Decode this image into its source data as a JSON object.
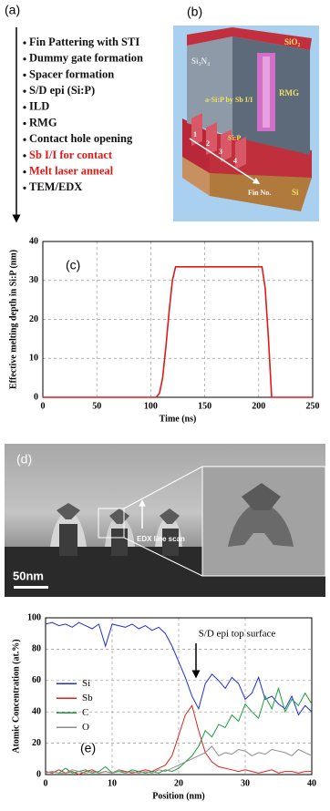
{
  "panels": {
    "a": "(a)",
    "b": "(b)",
    "d": "(d)"
  },
  "process_flow": {
    "steps": [
      {
        "text": "Fin Pattering with STI",
        "color": "#111111"
      },
      {
        "text": "Dummy gate formation",
        "color": "#111111"
      },
      {
        "text": "Spacer formation",
        "color": "#111111"
      },
      {
        "text": "S/D epi (Si:P)",
        "color": "#111111"
      },
      {
        "text": "ILD",
        "color": "#111111"
      },
      {
        "text": "RMG",
        "color": "#111111"
      },
      {
        "text": "Contact hole opening",
        "color": "#111111"
      },
      {
        "text": "Sb I/I for contact",
        "color": "#e01818"
      },
      {
        "text": "Melt laser anneal",
        "color": "#e01818"
      },
      {
        "text": "TEM/EDX",
        "color": "#111111"
      }
    ]
  },
  "diagram": {
    "sio2": "SiO₂",
    "si3n4": "Si₃N₄",
    "asip": "a-Si:P by Sb I/I",
    "rmg": "RMG",
    "sip": "Si:P",
    "fins": [
      "1",
      "2",
      "3",
      "4"
    ],
    "fin_no": "Fin No.",
    "si": "Si"
  },
  "tem": {
    "edx": "EDX line scan",
    "scale": "50nm"
  },
  "chart_data": [
    {
      "type": "line",
      "panel": "(c)",
      "x_label": "Time (ns)",
      "y_label": "Effective melting depth in Si:P (nm)",
      "x": [
        0,
        105,
        108,
        111,
        114,
        117,
        120,
        123,
        200,
        203,
        206,
        209,
        212,
        250
      ],
      "values": [
        0,
        0,
        1,
        5,
        13,
        22,
        30,
        33.5,
        33.5,
        33.5,
        28,
        15,
        0,
        0
      ],
      "color": "#e01818",
      "xlim": [
        0,
        250
      ],
      "xticks": [
        0,
        50,
        100,
        150,
        200,
        250
      ],
      "ylim": [
        0,
        40
      ],
      "yticks": [
        0,
        10,
        20,
        30,
        40
      ],
      "grid": true
    },
    {
      "type": "line",
      "panel": "(e)",
      "x_label": "Position (nm)",
      "y_label": "Atomic Concentration (at.%)",
      "annotation": "S/D epi top surface",
      "legend": "left",
      "x": [
        0,
        1,
        2,
        3,
        4,
        5,
        6,
        7,
        8,
        9,
        10,
        11,
        12,
        13,
        14,
        15,
        16,
        17,
        18,
        19,
        20,
        21,
        22,
        23,
        24,
        25,
        26,
        27,
        28,
        29,
        30,
        31,
        32,
        33,
        34,
        35,
        36,
        37,
        38,
        39,
        40
      ],
      "series": [
        {
          "name": "Si",
          "color": "#1f2ed8",
          "values": [
            96,
            97,
            95,
            96,
            94,
            97,
            95,
            93,
            96,
            82,
            96,
            95,
            94,
            96,
            93,
            95,
            92,
            94,
            90,
            82,
            72,
            62,
            50,
            42,
            58,
            64,
            60,
            55,
            62,
            58,
            48,
            52,
            62,
            48,
            50,
            45,
            42,
            50,
            38,
            44,
            40
          ]
        },
        {
          "name": "Sb",
          "color": "#e0201c",
          "values": [
            2,
            1,
            3,
            1,
            2,
            0,
            2,
            3,
            1,
            2,
            1,
            3,
            2,
            1,
            2,
            3,
            2,
            4,
            6,
            12,
            25,
            38,
            44,
            28,
            14,
            8,
            5,
            4,
            3,
            2,
            3,
            2,
            1,
            2,
            3,
            1,
            2,
            2,
            1,
            2,
            2
          ]
        },
        {
          "name": "C",
          "color": "#1a9c3c",
          "values": [
            1,
            2,
            1,
            4,
            1,
            2,
            3,
            1,
            2,
            5,
            1,
            2,
            1,
            3,
            2,
            1,
            2,
            1,
            3,
            2,
            4,
            8,
            12,
            18,
            28,
            24,
            32,
            30,
            38,
            34,
            45,
            40,
            36,
            50,
            42,
            55,
            40,
            48,
            44,
            52,
            45
          ]
        },
        {
          "name": "O",
          "color": "#8c8c8c",
          "values": [
            1,
            2,
            1,
            1,
            3,
            2,
            1,
            2,
            1,
            2,
            1,
            3,
            1,
            2,
            1,
            2,
            1,
            3,
            2,
            4,
            6,
            8,
            10,
            12,
            14,
            18,
            12,
            14,
            13,
            16,
            15,
            12,
            14,
            13,
            16,
            15,
            14,
            12,
            16,
            14,
            12
          ]
        }
      ],
      "xlim": [
        0,
        40
      ],
      "xticks": [
        0,
        10,
        20,
        30,
        40
      ],
      "ylim": [
        0,
        100
      ],
      "yticks": [
        0,
        20,
        40,
        60,
        80,
        100
      ],
      "grid": true
    }
  ]
}
